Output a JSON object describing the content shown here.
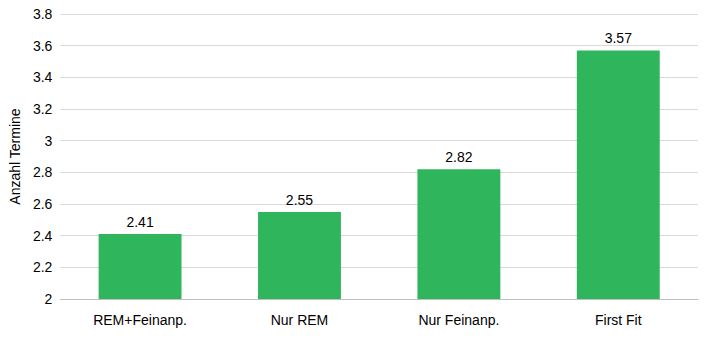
{
  "chart_data": {
    "type": "bar",
    "y_label": "Anzahl Termine",
    "categories": [
      "REM+Feinanp.",
      "Nur REM",
      "Nur Feinanp.",
      "First Fit"
    ],
    "values": [
      2.41,
      2.55,
      2.82,
      3.57
    ],
    "color": "#2fb55c",
    "ylim": [
      2,
      3.8
    ],
    "yticks": [
      2,
      2.2,
      2.4,
      2.6,
      2.8,
      3,
      3.2,
      3.4,
      3.6,
      3.8
    ],
    "grid": true,
    "data_labels": true
  }
}
